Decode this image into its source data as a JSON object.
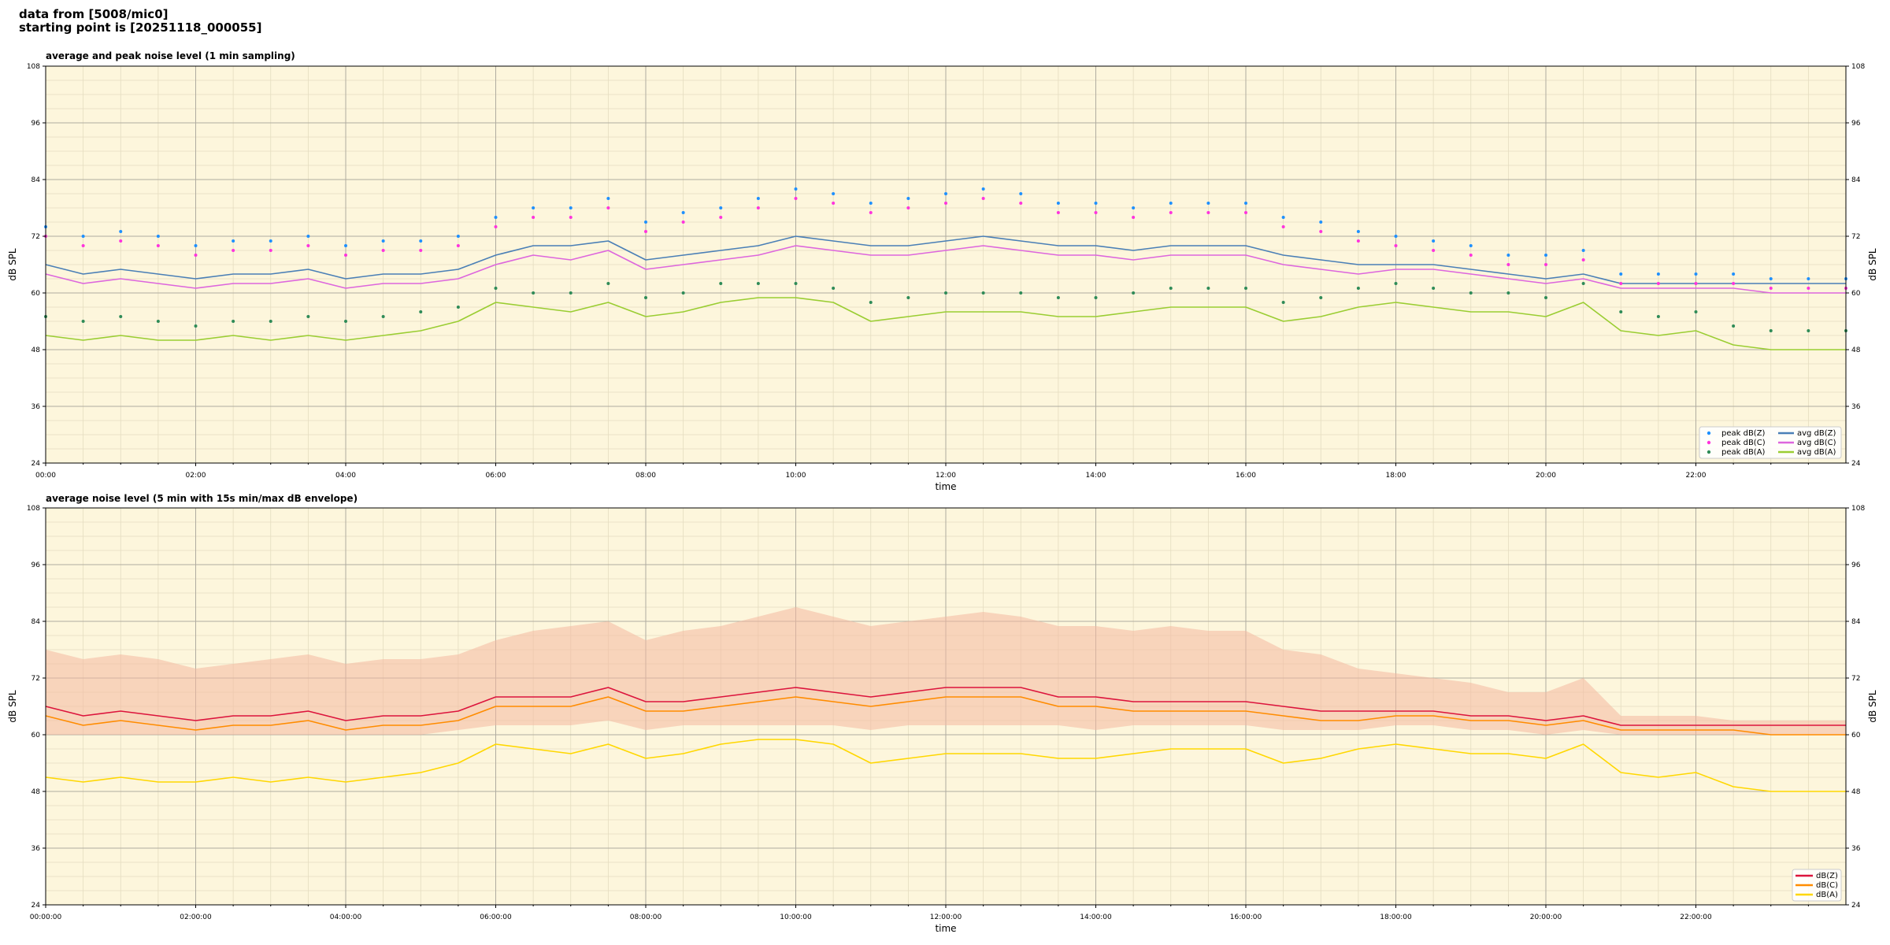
{
  "header": {
    "line1": "data from [5008/mic0]",
    "line2": "starting point is [20251118_000055]"
  },
  "colors": {
    "panel_bg": "#fdf6dc",
    "peak_z": "#1e90ff",
    "peak_c": "#ff33dd",
    "peak_a": "#2e8b57",
    "avg_z": "#4a7fb6",
    "avg_c": "#dd66dd",
    "avg_a": "#9acd32",
    "env_z": "#dc143c",
    "env_c": "#ff8c00",
    "env_a": "#ffd700",
    "envelope": "#f4b8a0"
  },
  "chart_data": [
    {
      "type": "line",
      "title": "average and peak noise level (1 min sampling)",
      "xlabel": "time",
      "ylabel": "dB SPL",
      "ylim": [
        24,
        108
      ],
      "yticks": [
        24,
        36,
        48,
        60,
        72,
        84,
        96,
        108
      ],
      "xticks": [
        "00:00",
        "02:00",
        "04:00",
        "06:00",
        "08:00",
        "10:00",
        "12:00",
        "14:00",
        "16:00",
        "18:00",
        "20:00",
        "22:00"
      ],
      "x_hours": [
        0,
        0.5,
        1,
        1.5,
        2,
        2.5,
        3,
        3.5,
        4,
        4.5,
        5,
        5.5,
        6,
        6.5,
        7,
        7.5,
        8,
        8.5,
        9,
        9.5,
        10,
        10.5,
        11,
        11.5,
        12,
        12.5,
        13,
        13.5,
        14,
        14.5,
        15,
        15.5,
        16,
        16.5,
        17,
        17.5,
        18,
        18.5,
        19,
        19.5,
        20,
        20.5,
        21,
        21.5,
        22,
        22.5,
        23,
        23.5,
        24
      ],
      "legend_position": "bottom-right",
      "grid": true,
      "series": [
        {
          "name": "avg dB(Z)",
          "style": "line",
          "values": [
            66,
            64,
            65,
            64,
            63,
            64,
            64,
            65,
            63,
            64,
            64,
            65,
            68,
            70,
            70,
            71,
            67,
            68,
            69,
            70,
            72,
            71,
            70,
            70,
            71,
            72,
            71,
            70,
            70,
            69,
            70,
            70,
            70,
            68,
            67,
            66,
            66,
            66,
            65,
            64,
            63,
            64,
            62,
            62,
            62,
            62,
            62,
            62,
            62
          ]
        },
        {
          "name": "avg dB(C)",
          "style": "line",
          "values": [
            64,
            62,
            63,
            62,
            61,
            62,
            62,
            63,
            61,
            62,
            62,
            63,
            66,
            68,
            67,
            69,
            65,
            66,
            67,
            68,
            70,
            69,
            68,
            68,
            69,
            70,
            69,
            68,
            68,
            67,
            68,
            68,
            68,
            66,
            65,
            64,
            65,
            65,
            64,
            63,
            62,
            63,
            61,
            61,
            61,
            61,
            60,
            60,
            60
          ]
        },
        {
          "name": "avg dB(A)",
          "style": "line",
          "values": [
            51,
            50,
            51,
            50,
            50,
            51,
            50,
            51,
            50,
            51,
            52,
            54,
            58,
            57,
            56,
            58,
            55,
            56,
            58,
            59,
            59,
            58,
            54,
            55,
            56,
            56,
            56,
            55,
            55,
            56,
            57,
            57,
            57,
            54,
            55,
            57,
            58,
            57,
            56,
            56,
            55,
            58,
            52,
            51,
            52,
            49,
            48,
            48,
            48
          ]
        },
        {
          "name": "peak dB(Z)",
          "style": "dots",
          "values": [
            74,
            72,
            73,
            72,
            70,
            71,
            71,
            72,
            70,
            71,
            71,
            72,
            76,
            78,
            78,
            80,
            75,
            77,
            78,
            80,
            82,
            81,
            79,
            80,
            81,
            82,
            81,
            79,
            79,
            78,
            79,
            79,
            79,
            76,
            75,
            73,
            72,
            71,
            70,
            68,
            68,
            69,
            64,
            64,
            64,
            64,
            63,
            63,
            63
          ]
        },
        {
          "name": "peak dB(C)",
          "style": "dots",
          "values": [
            72,
            70,
            71,
            70,
            68,
            69,
            69,
            70,
            68,
            69,
            69,
            70,
            74,
            76,
            76,
            78,
            73,
            75,
            76,
            78,
            80,
            79,
            77,
            78,
            79,
            80,
            79,
            77,
            77,
            76,
            77,
            77,
            77,
            74,
            73,
            71,
            70,
            69,
            68,
            66,
            66,
            67,
            62,
            62,
            62,
            62,
            61,
            61,
            61
          ]
        },
        {
          "name": "peak dB(A)",
          "style": "dots",
          "values": [
            55,
            54,
            55,
            54,
            53,
            54,
            54,
            55,
            54,
            55,
            56,
            57,
            61,
            60,
            60,
            62,
            59,
            60,
            62,
            62,
            62,
            61,
            58,
            59,
            60,
            60,
            60,
            59,
            59,
            60,
            61,
            61,
            61,
            58,
            59,
            61,
            62,
            61,
            60,
            60,
            59,
            62,
            56,
            55,
            56,
            53,
            52,
            52,
            52
          ]
        }
      ]
    },
    {
      "type": "line",
      "title": "average noise level (5 min with 15s min/max dB envelope)",
      "xlabel": "time",
      "ylabel": "dB SPL",
      "ylim": [
        24,
        108
      ],
      "yticks": [
        24,
        36,
        48,
        60,
        72,
        84,
        96,
        108
      ],
      "xticks": [
        "00:00:00",
        "02:00:00",
        "04:00:00",
        "06:00:00",
        "08:00:00",
        "10:00:00",
        "12:00:00",
        "14:00:00",
        "16:00:00",
        "18:00:00",
        "20:00:00",
        "22:00:00"
      ],
      "x_hours": [
        0,
        0.5,
        1,
        1.5,
        2,
        2.5,
        3,
        3.5,
        4,
        4.5,
        5,
        5.5,
        6,
        6.5,
        7,
        7.5,
        8,
        8.5,
        9,
        9.5,
        10,
        10.5,
        11,
        11.5,
        12,
        12.5,
        13,
        13.5,
        14,
        14.5,
        15,
        15.5,
        16,
        16.5,
        17,
        17.5,
        18,
        18.5,
        19,
        19.5,
        20,
        20.5,
        21,
        21.5,
        22,
        22.5,
        23,
        23.5,
        24
      ],
      "legend_position": "bottom-right",
      "grid": true,
      "envelope": {
        "lower": [
          60,
          60,
          60,
          60,
          60,
          60,
          60,
          60,
          60,
          60,
          60,
          61,
          62,
          62,
          62,
          63,
          61,
          62,
          62,
          62,
          62,
          62,
          61,
          62,
          62,
          62,
          62,
          62,
          61,
          62,
          62,
          62,
          62,
          61,
          61,
          61,
          62,
          62,
          61,
          61,
          60,
          61,
          60,
          60,
          60,
          60,
          60,
          60,
          60
        ],
        "upper": [
          78,
          76,
          77,
          76,
          74,
          75,
          76,
          77,
          75,
          76,
          76,
          77,
          80,
          82,
          83,
          84,
          80,
          82,
          83,
          85,
          87,
          85,
          83,
          84,
          85,
          86,
          85,
          83,
          83,
          82,
          83,
          82,
          82,
          78,
          77,
          74,
          73,
          72,
          71,
          69,
          69,
          72,
          64,
          64,
          64,
          63,
          63,
          63,
          63
        ]
      },
      "series": [
        {
          "name": "dB(Z)",
          "values": [
            66,
            64,
            65,
            64,
            63,
            64,
            64,
            65,
            63,
            64,
            64,
            65,
            68,
            68,
            68,
            70,
            67,
            67,
            68,
            69,
            70,
            69,
            68,
            69,
            70,
            70,
            70,
            68,
            68,
            67,
            67,
            67,
            67,
            66,
            65,
            65,
            65,
            65,
            64,
            64,
            63,
            64,
            62,
            62,
            62,
            62,
            62,
            62,
            62
          ]
        },
        {
          "name": "dB(C)",
          "values": [
            64,
            62,
            63,
            62,
            61,
            62,
            62,
            63,
            61,
            62,
            62,
            63,
            66,
            66,
            66,
            68,
            65,
            65,
            66,
            67,
            68,
            67,
            66,
            67,
            68,
            68,
            68,
            66,
            66,
            65,
            65,
            65,
            65,
            64,
            63,
            63,
            64,
            64,
            63,
            63,
            62,
            63,
            61,
            61,
            61,
            61,
            60,
            60,
            60
          ]
        },
        {
          "name": "dB(A)",
          "values": [
            51,
            50,
            51,
            50,
            50,
            51,
            50,
            51,
            50,
            51,
            52,
            54,
            58,
            57,
            56,
            58,
            55,
            56,
            58,
            59,
            59,
            58,
            54,
            55,
            56,
            56,
            56,
            55,
            55,
            56,
            57,
            57,
            57,
            54,
            55,
            57,
            58,
            57,
            56,
            56,
            55,
            58,
            52,
            51,
            52,
            49,
            48,
            48,
            48
          ]
        }
      ]
    }
  ]
}
